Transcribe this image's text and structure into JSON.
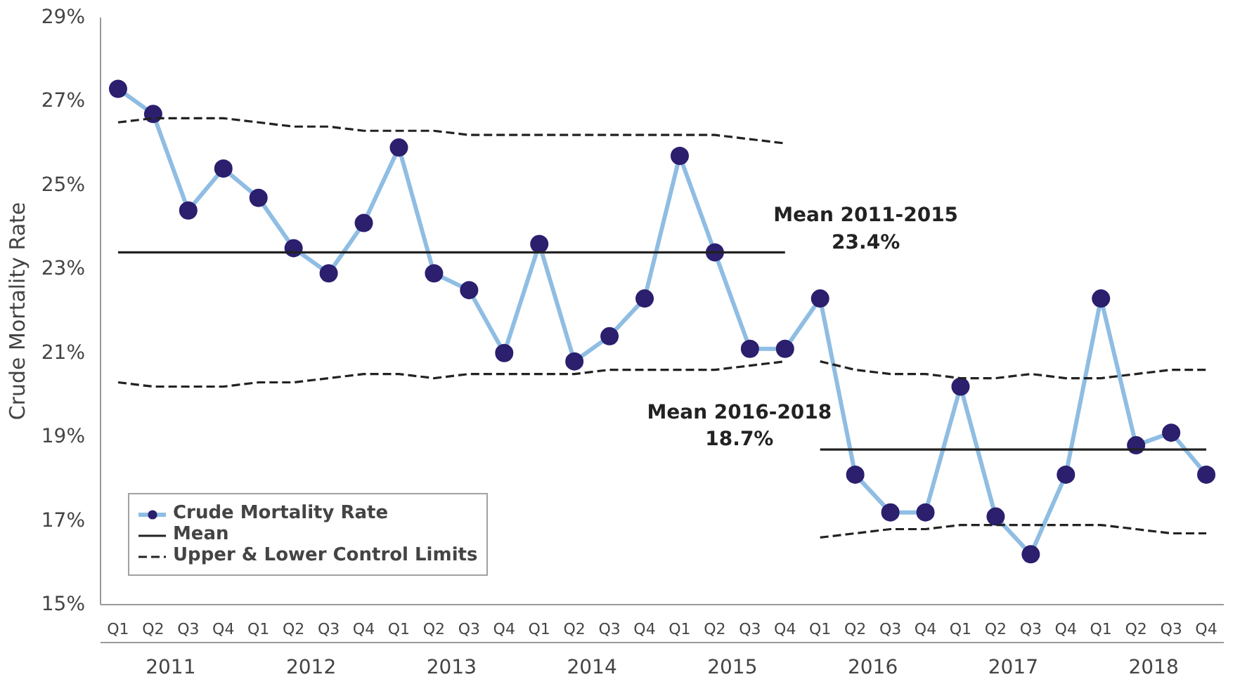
{
  "chart_data": {
    "type": "line",
    "ylabel": "Crude Mortality Rate",
    "categories": [
      "Q1",
      "Q2",
      "Q3",
      "Q4",
      "Q1",
      "Q2",
      "Q3",
      "Q4",
      "Q1",
      "Q2",
      "Q3",
      "Q4",
      "Q1",
      "Q2",
      "Q3",
      "Q4",
      "Q1",
      "Q2",
      "Q3",
      "Q4",
      "Q1",
      "Q2",
      "Q3",
      "Q4",
      "Q1",
      "Q2",
      "Q3",
      "Q4",
      "Q1",
      "Q2",
      "Q3",
      "Q4"
    ],
    "series": [
      {
        "name": "Crude Mortality Rate",
        "color": "#2b1f6e",
        "marker": "circle",
        "values": [
          27.3,
          26.7,
          24.4,
          25.4,
          24.7,
          23.5,
          22.9,
          24.1,
          25.9,
          22.9,
          22.5,
          21.0,
          23.6,
          20.8,
          21.4,
          22.3,
          25.7,
          23.4,
          21.1,
          21.1,
          22.3,
          18.1,
          17.2,
          17.2,
          20.2,
          17.1,
          16.2,
          18.1,
          22.3,
          18.8,
          19.1,
          18.1
        ]
      },
      {
        "name": "Mean",
        "color": "#222222",
        "line_style": "solid",
        "values": [
          23.4,
          23.4,
          23.4,
          23.4,
          23.4,
          23.4,
          23.4,
          23.4,
          23.4,
          23.4,
          23.4,
          23.4,
          23.4,
          23.4,
          23.4,
          23.4,
          23.4,
          23.4,
          23.4,
          23.4,
          null,
          null,
          null,
          null,
          null,
          null,
          null,
          null,
          null,
          null,
          null,
          null
        ]
      },
      {
        "color": "#222222",
        "line_style": "solid",
        "values": [
          null,
          null,
          null,
          null,
          null,
          null,
          null,
          null,
          null,
          null,
          null,
          null,
          null,
          null,
          null,
          null,
          null,
          null,
          null,
          null,
          18.7,
          18.7,
          18.7,
          18.7,
          18.7,
          18.7,
          18.7,
          18.7,
          18.7,
          18.7,
          18.7,
          18.7
        ]
      },
      {
        "name": "Upper & Lower Control Limits",
        "color": "#222222",
        "line_style": "dashed",
        "values": [
          26.5,
          26.6,
          26.6,
          26.6,
          26.5,
          26.4,
          26.4,
          26.3,
          26.3,
          26.3,
          26.2,
          26.2,
          26.2,
          26.2,
          26.2,
          26.2,
          26.2,
          26.2,
          26.1,
          26.0,
          null,
          null,
          null,
          null,
          null,
          null,
          null,
          null,
          null,
          null,
          null,
          null
        ]
      },
      {
        "color": "#222222",
        "line_style": "dashed",
        "values": [
          20.3,
          20.2,
          20.2,
          20.2,
          20.3,
          20.3,
          20.4,
          20.5,
          20.5,
          20.4,
          20.5,
          20.5,
          20.5,
          20.5,
          20.6,
          20.6,
          20.6,
          20.6,
          20.7,
          20.8,
          null,
          null,
          null,
          null,
          null,
          null,
          null,
          null,
          null,
          null,
          null,
          null
        ]
      },
      {
        "color": "#222222",
        "line_style": "dashed",
        "values": [
          null,
          null,
          null,
          null,
          null,
          null,
          null,
          null,
          null,
          null,
          null,
          null,
          null,
          null,
          null,
          null,
          null,
          null,
          null,
          null,
          20.8,
          20.6,
          20.5,
          20.5,
          20.4,
          20.4,
          20.5,
          20.4,
          20.4,
          20.5,
          20.6,
          20.6
        ]
      },
      {
        "color": "#222222",
        "line_style": "dashed",
        "values": [
          null,
          null,
          null,
          null,
          null,
          null,
          null,
          null,
          null,
          null,
          null,
          null,
          null,
          null,
          null,
          null,
          null,
          null,
          null,
          null,
          16.6,
          16.7,
          16.8,
          16.8,
          16.9,
          16.9,
          16.9,
          16.9,
          16.9,
          16.8,
          16.7,
          16.7
        ]
      }
    ],
    "ylim": [
      15,
      29
    ],
    "yticks": [
      {
        "value": 15,
        "label": "15%"
      },
      {
        "value": 17,
        "label": "17%"
      },
      {
        "value": 19,
        "label": "19%"
      },
      {
        "value": 21,
        "label": "21%"
      },
      {
        "value": 23,
        "label": "23%"
      },
      {
        "value": 25,
        "label": "25%"
      },
      {
        "value": 27,
        "label": "27%"
      },
      {
        "value": 29,
        "label": "29%"
      }
    ],
    "annotations": [
      "Mean 2011-2015\n23.4%",
      "Mean 2016-2018\n18.7%",
      "2011",
      "2012",
      "2013",
      "2014",
      "2015",
      "2016",
      "2017",
      "2018"
    ],
    "grid": false,
    "legend": "bottom left"
  }
}
